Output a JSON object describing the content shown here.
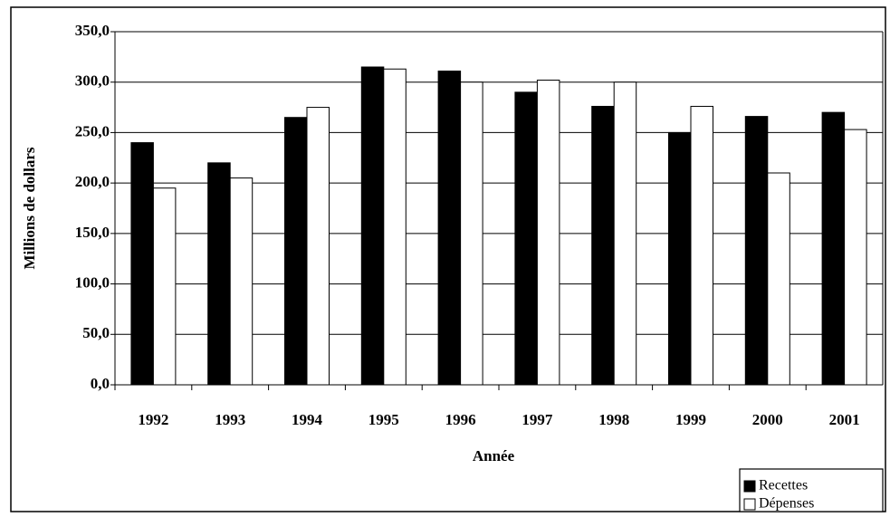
{
  "chart_data": {
    "type": "bar",
    "x_label": "Année",
    "y_label": "Millions de dollars",
    "categories": [
      "1992",
      "1993",
      "1994",
      "1995",
      "1996",
      "1997",
      "1998",
      "1999",
      "2000",
      "2001"
    ],
    "series": [
      {
        "name": "Recettes",
        "color": "#000000",
        "values": [
          240,
          220,
          265,
          315,
          311,
          290,
          276,
          250,
          266,
          270
        ]
      },
      {
        "name": "Dépenses",
        "color": "#ffffff",
        "values": [
          195,
          205,
          275,
          313,
          300,
          302,
          300,
          276,
          210,
          253
        ]
      }
    ],
    "ylim": [
      0,
      350
    ],
    "yticks": [
      {
        "value": 0,
        "label": "0,0"
      },
      {
        "value": 50,
        "label": "50,0"
      },
      {
        "value": 100,
        "label": "100,0"
      },
      {
        "value": 150,
        "label": "150,0"
      },
      {
        "value": 200,
        "label": "200,0"
      },
      {
        "value": 250,
        "label": "250,0"
      },
      {
        "value": 300,
        "label": "300,0"
      },
      {
        "value": 350,
        "label": "350,0"
      }
    ],
    "grid": true
  }
}
